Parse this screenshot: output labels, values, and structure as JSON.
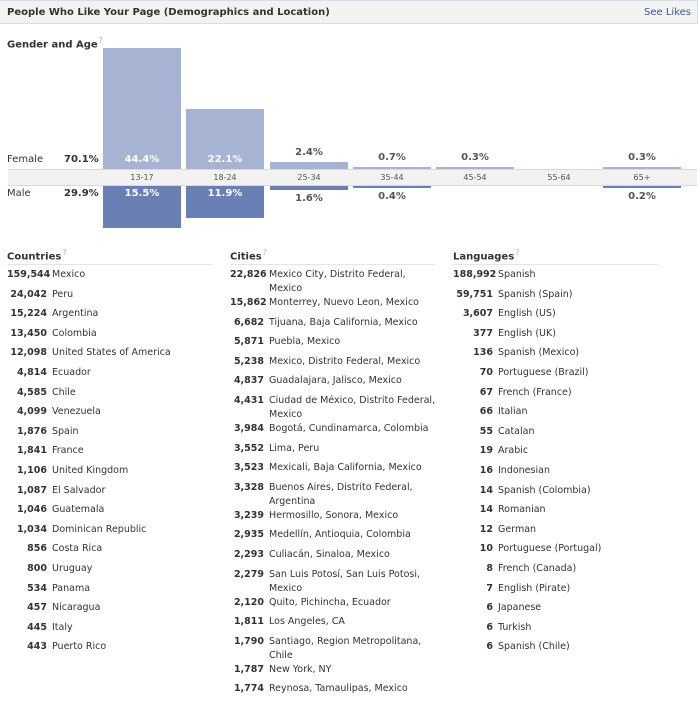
{
  "header": {
    "title": "People Who Like Your Page (Demographics and Location)",
    "see_likes": "See Likes"
  },
  "gender_age": {
    "title": "Gender and Age",
    "help": "?",
    "female": {
      "label": "Female",
      "pct": "70.1%"
    },
    "male": {
      "label": "Male",
      "pct": "29.9%"
    },
    "colors": {
      "female": "#a6b3d3",
      "male": "#6a7fb3"
    }
  },
  "chart_data": {
    "type": "bar",
    "categories": [
      "13-17",
      "18-24",
      "25-34",
      "35-44",
      "45-54",
      "55-64",
      "65+"
    ],
    "series": [
      {
        "name": "Female",
        "values": [
          44.4,
          22.1,
          2.4,
          0.7,
          0.3,
          0,
          0.3
        ],
        "labels": [
          "44.4%",
          "22.1%",
          "2.4%",
          "0.7%",
          "0.3%",
          "",
          "0.3%"
        ]
      },
      {
        "name": "Male",
        "values": [
          15.5,
          11.9,
          1.6,
          0.4,
          0,
          0,
          0.2
        ],
        "labels": [
          "15.5%",
          "11.9%",
          "1.6%",
          "0.4%",
          "",
          "",
          "0.2%"
        ]
      }
    ]
  },
  "countries": {
    "title": "Countries",
    "help": "?",
    "items": [
      {
        "count": "159,544",
        "name": "Mexico"
      },
      {
        "count": "24,042",
        "name": "Peru"
      },
      {
        "count": "15,224",
        "name": "Argentina"
      },
      {
        "count": "13,450",
        "name": "Colombia"
      },
      {
        "count": "12,098",
        "name": "United States of America"
      },
      {
        "count": "4,814",
        "name": "Ecuador"
      },
      {
        "count": "4,585",
        "name": "Chile"
      },
      {
        "count": "4,099",
        "name": "Venezuela"
      },
      {
        "count": "1,876",
        "name": "Spain"
      },
      {
        "count": "1,841",
        "name": "France"
      },
      {
        "count": "1,106",
        "name": "United Kingdom"
      },
      {
        "count": "1,087",
        "name": "El Salvador"
      },
      {
        "count": "1,046",
        "name": "Guatemala"
      },
      {
        "count": "1,034",
        "name": "Dominican Republic"
      },
      {
        "count": "856",
        "name": "Costa Rica"
      },
      {
        "count": "800",
        "name": "Uruguay"
      },
      {
        "count": "534",
        "name": "Panama"
      },
      {
        "count": "457",
        "name": "Nicaragua"
      },
      {
        "count": "445",
        "name": "Italy"
      },
      {
        "count": "443",
        "name": "Puerto Rico"
      }
    ]
  },
  "cities": {
    "title": "Cities",
    "help": "?",
    "items": [
      {
        "count": "22,826",
        "name": "Mexico City, Distrito Federal, Mexico"
      },
      {
        "count": "15,862",
        "name": "Monterrey, Nuevo Leon, Mexico"
      },
      {
        "count": "6,682",
        "name": "Tijuana, Baja California, Mexico"
      },
      {
        "count": "5,871",
        "name": "Puebla, Mexico"
      },
      {
        "count": "5,238",
        "name": "Mexico, Distrito Federal, Mexico"
      },
      {
        "count": "4,837",
        "name": "Guadalajara, Jalisco, Mexico"
      },
      {
        "count": "4,431",
        "name": "Ciudad de México, Distrito Federal, Mexico"
      },
      {
        "count": "3,984",
        "name": "Bogotá, Cundinamarca, Colombia"
      },
      {
        "count": "3,552",
        "name": "Lima, Peru"
      },
      {
        "count": "3,523",
        "name": "Mexicali, Baja California, Mexico"
      },
      {
        "count": "3,328",
        "name": "Buenos Aires, Distrito Federal, Argentina"
      },
      {
        "count": "3,239",
        "name": "Hermosillo, Sonora, Mexico"
      },
      {
        "count": "2,935",
        "name": "Medellín, Antioquia, Colombia"
      },
      {
        "count": "2,293",
        "name": "Culiacán, Sinaloa, Mexico"
      },
      {
        "count": "2,279",
        "name": "San Luis Potosí, San Luis Potosi, Mexico"
      },
      {
        "count": "2,120",
        "name": "Quito, Pichincha, Ecuador"
      },
      {
        "count": "1,811",
        "name": "Los Angeles, CA"
      },
      {
        "count": "1,790",
        "name": "Santiago, Region Metropolitana, Chile"
      },
      {
        "count": "1,787",
        "name": "New York, NY"
      },
      {
        "count": "1,774",
        "name": "Reynosa, Tamaulipas, Mexico"
      }
    ]
  },
  "languages": {
    "title": "Languages",
    "help": "?",
    "items": [
      {
        "count": "188,992",
        "name": "Spanish"
      },
      {
        "count": "59,751",
        "name": "Spanish (Spain)"
      },
      {
        "count": "3,607",
        "name": "English (US)"
      },
      {
        "count": "377",
        "name": "English (UK)"
      },
      {
        "count": "136",
        "name": "Spanish (Mexico)"
      },
      {
        "count": "70",
        "name": "Portuguese (Brazil)"
      },
      {
        "count": "67",
        "name": "French (France)"
      },
      {
        "count": "66",
        "name": "Italian"
      },
      {
        "count": "55",
        "name": "Catalan"
      },
      {
        "count": "19",
        "name": "Arabic"
      },
      {
        "count": "16",
        "name": "Indonesian"
      },
      {
        "count": "14",
        "name": "Spanish (Colombia)"
      },
      {
        "count": "14",
        "name": "Romanian"
      },
      {
        "count": "12",
        "name": "German"
      },
      {
        "count": "10",
        "name": "Portuguese (Portugal)"
      },
      {
        "count": "8",
        "name": "French (Canada)"
      },
      {
        "count": "7",
        "name": "English (Pirate)"
      },
      {
        "count": "6",
        "name": "Japanese"
      },
      {
        "count": "6",
        "name": "Turkish"
      },
      {
        "count": "6",
        "name": "Spanish (Chile)"
      }
    ]
  }
}
